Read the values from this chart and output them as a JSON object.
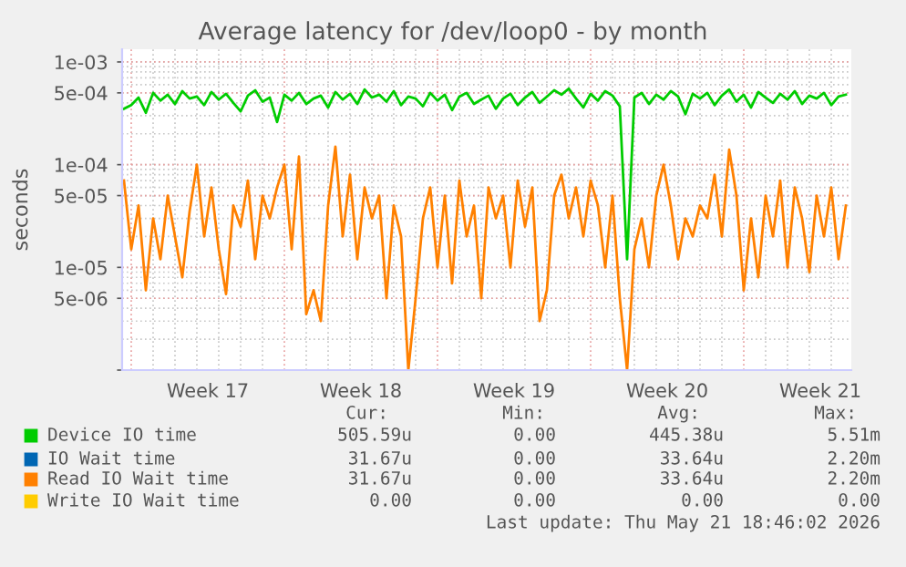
{
  "chart_data": {
    "type": "line",
    "title": "Average latency for /dev/loop0 - by month",
    "ylabel": "seconds",
    "log": true,
    "grid": true,
    "legend": "bottom",
    "xlim": [
      "2026-04-19T14:00",
      "2026-05-22T22:00"
    ],
    "ylim": [
      1e-06,
      0.00133
    ],
    "xticks": [
      {
        "value": "2026-04-23T12:00",
        "label": "Week 17"
      },
      {
        "value": "2026-04-30T12:00",
        "label": "Week 18"
      },
      {
        "value": "2026-05-07T12:00",
        "label": "Week 19"
      },
      {
        "value": "2026-05-14T12:00",
        "label": "Week 20"
      },
      {
        "value": "2026-05-21T12:00",
        "label": "Week 21"
      }
    ],
    "yticks": [
      {
        "value": 0.001,
        "label": "1e-03"
      },
      {
        "value": 0.0005,
        "label": "5e-04"
      },
      {
        "value": 0.0001,
        "label": "1e-04"
      },
      {
        "value": 5e-05,
        "label": "5e-05"
      },
      {
        "value": 1e-05,
        "label": "1e-05"
      },
      {
        "value": 5e-06,
        "label": "5e-06"
      },
      {
        "value": 1e-06,
        "label": null
      }
    ],
    "x": [
      "2026-04-19T16:00",
      "2026-04-20T00:00",
      "2026-04-20T08:00",
      "2026-04-20T16:00",
      "2026-04-21T00:00",
      "2026-04-21T08:00",
      "2026-04-21T16:00",
      "2026-04-22T00:00",
      "2026-04-22T08:00",
      "2026-04-22T16:00",
      "2026-04-23T00:00",
      "2026-04-23T08:00",
      "2026-04-23T16:00",
      "2026-04-24T00:00",
      "2026-04-24T08:00",
      "2026-04-24T16:00",
      "2026-04-25T00:00",
      "2026-04-25T08:00",
      "2026-04-25T16:00",
      "2026-04-26T00:00",
      "2026-04-26T08:00",
      "2026-04-26T16:00",
      "2026-04-27T00:00",
      "2026-04-27T08:00",
      "2026-04-27T16:00",
      "2026-04-28T00:00",
      "2026-04-28T08:00",
      "2026-04-28T16:00",
      "2026-04-29T00:00",
      "2026-04-29T08:00",
      "2026-04-29T16:00",
      "2026-04-30T00:00",
      "2026-04-30T08:00",
      "2026-04-30T16:00",
      "2026-05-01T00:00",
      "2026-05-01T08:00",
      "2026-05-01T16:00",
      "2026-05-02T00:00",
      "2026-05-02T08:00",
      "2026-05-02T16:00",
      "2026-05-03T00:00",
      "2026-05-03T08:00",
      "2026-05-03T16:00",
      "2026-05-04T00:00",
      "2026-05-04T08:00",
      "2026-05-04T16:00",
      "2026-05-05T00:00",
      "2026-05-05T08:00",
      "2026-05-05T16:00",
      "2026-05-06T00:00",
      "2026-05-06T08:00",
      "2026-05-06T16:00",
      "2026-05-07T00:00",
      "2026-05-07T08:00",
      "2026-05-07T16:00",
      "2026-05-08T00:00",
      "2026-05-08T08:00",
      "2026-05-08T16:00",
      "2026-05-09T00:00",
      "2026-05-09T08:00",
      "2026-05-09T16:00",
      "2026-05-10T00:00",
      "2026-05-10T08:00",
      "2026-05-10T16:00",
      "2026-05-11T00:00",
      "2026-05-11T08:00",
      "2026-05-11T16:00",
      "2026-05-12T00:00",
      "2026-05-12T08:00",
      "2026-05-12T16:00",
      "2026-05-13T00:00",
      "2026-05-13T08:00",
      "2026-05-13T16:00",
      "2026-05-14T00:00",
      "2026-05-14T08:00",
      "2026-05-14T16:00",
      "2026-05-15T00:00",
      "2026-05-15T08:00",
      "2026-05-15T16:00",
      "2026-05-16T00:00",
      "2026-05-16T08:00",
      "2026-05-16T16:00",
      "2026-05-17T00:00",
      "2026-05-17T08:00",
      "2026-05-17T16:00",
      "2026-05-18T00:00",
      "2026-05-18T08:00",
      "2026-05-18T16:00",
      "2026-05-19T00:00",
      "2026-05-19T08:00",
      "2026-05-19T16:00",
      "2026-05-20T00:00",
      "2026-05-20T08:00",
      "2026-05-20T16:00",
      "2026-05-21T00:00",
      "2026-05-21T08:00",
      "2026-05-21T16:00",
      "2026-05-22T00:00",
      "2026-05-22T08:00",
      "2026-05-22T16:00"
    ],
    "series": [
      {
        "name": "Device IO time",
        "color": "#00cc00",
        "values": [
          0.00035,
          0.00038,
          0.00045,
          0.00032,
          0.0005,
          0.00042,
          0.00048,
          0.00039,
          0.00052,
          0.00044,
          0.00046,
          0.00038,
          0.00051,
          0.00043,
          0.00049,
          0.0004,
          0.00033,
          0.00047,
          0.00053,
          0.00041,
          0.00045,
          0.00026,
          0.00048,
          0.00042,
          0.0005,
          0.00039,
          0.00044,
          0.00047,
          0.00036,
          0.00051,
          0.00043,
          0.00049,
          0.00039,
          0.00054,
          0.00045,
          0.00048,
          0.00041,
          0.00052,
          0.00038,
          0.00046,
          0.00044,
          0.00037,
          0.0005,
          0.00042,
          0.00048,
          0.00034,
          0.00046,
          0.0005,
          0.00039,
          0.00043,
          0.00047,
          0.00035,
          0.00044,
          0.00049,
          0.00038,
          0.00045,
          0.00051,
          0.0004,
          0.00046,
          0.00053,
          0.00048,
          0.00055,
          0.00044,
          0.00036,
          0.00049,
          0.00042,
          0.00052,
          0.00047,
          0.00037,
          1.2e-05,
          0.00045,
          0.0005,
          0.00039,
          0.00048,
          0.00043,
          0.00052,
          0.00046,
          0.00031,
          0.00049,
          0.00044,
          0.0005,
          0.00038,
          0.00047,
          0.00054,
          0.00041,
          0.00048,
          0.00036,
          0.00051,
          0.00045,
          0.0004,
          0.00049,
          0.00043,
          0.00052,
          0.00039,
          0.00047,
          0.00044,
          0.0005,
          0.00038,
          0.00046,
          0.00048
        ]
      },
      {
        "name": "IO Wait time",
        "color": "#0066b3",
        "values": [
          null,
          null,
          null,
          null,
          null,
          null,
          null,
          null,
          null,
          null,
          null,
          null,
          null,
          null,
          null,
          null,
          null,
          null,
          null,
          null,
          null,
          null,
          null,
          null,
          null,
          null,
          null,
          null,
          null,
          null,
          null,
          null,
          null,
          null,
          null,
          null,
          null,
          null,
          null,
          null,
          null,
          null,
          null,
          null,
          null,
          null,
          null,
          null,
          null,
          null,
          null,
          null,
          null,
          null,
          null,
          null,
          null,
          null,
          null,
          null,
          null,
          null,
          null,
          null,
          null,
          null,
          null,
          null,
          null,
          null,
          null,
          null,
          null,
          null,
          null,
          null,
          null,
          null,
          null,
          null,
          null,
          null,
          null,
          null,
          null,
          null,
          null,
          null,
          null,
          null,
          null,
          null,
          null,
          null,
          null,
          null,
          null,
          null,
          null,
          null
        ]
      },
      {
        "name": "Read IO Wait time",
        "color": "#ff8000",
        "values": [
          7e-05,
          1.5e-05,
          4e-05,
          6e-06,
          3e-05,
          1.2e-05,
          5e-05,
          2e-05,
          8e-06,
          3.5e-05,
          0.0001,
          2e-05,
          6e-05,
          1.5e-05,
          5.5e-06,
          4e-05,
          2.5e-05,
          7e-05,
          1.2e-05,
          5e-05,
          3e-05,
          6e-05,
          0.0001,
          1.5e-05,
          0.00012,
          3.5e-06,
          6e-06,
          3e-06,
          4e-05,
          0.00015,
          2e-05,
          8e-05,
          1.2e-05,
          6e-05,
          3e-05,
          5e-05,
          5e-06,
          4e-05,
          2e-05,
          1e-06,
          5e-06,
          3e-05,
          6e-05,
          1e-05,
          5e-05,
          7e-06,
          7e-05,
          2e-05,
          4e-05,
          5e-06,
          6e-05,
          3e-05,
          5e-05,
          1e-05,
          7e-05,
          2.5e-05,
          6e-05,
          3e-06,
          6e-06,
          5e-05,
          8e-05,
          3e-05,
          6e-05,
          2e-05,
          7e-05,
          4e-05,
          1e-05,
          5e-05,
          5e-06,
          1e-06,
          1.5e-05,
          3e-05,
          1e-05,
          5e-05,
          0.0001,
          4e-05,
          1.2e-05,
          3e-05,
          2e-05,
          4e-05,
          3e-05,
          8e-05,
          2e-05,
          0.00014,
          5e-05,
          6e-06,
          3e-05,
          8e-06,
          5e-05,
          2e-05,
          7e-05,
          1e-05,
          6e-05,
          3e-05,
          9e-06,
          5e-05,
          2e-05,
          6e-05,
          1.2e-05,
          4e-05
        ]
      },
      {
        "name": "Write IO Wait time",
        "color": "#ffcc00",
        "values": [
          null,
          null,
          null,
          null,
          null,
          null,
          null,
          null,
          null,
          null,
          null,
          null,
          null,
          null,
          null,
          null,
          null,
          null,
          null,
          null,
          null,
          null,
          null,
          null,
          null,
          null,
          null,
          null,
          null,
          null,
          null,
          null,
          null,
          null,
          null,
          null,
          null,
          null,
          null,
          null,
          null,
          null,
          null,
          null,
          null,
          null,
          null,
          null,
          null,
          null,
          null,
          null,
          null,
          null,
          null,
          null,
          null,
          null,
          null,
          null,
          null,
          null,
          null,
          null,
          null,
          null,
          null,
          null,
          null,
          null,
          null,
          null,
          null,
          null,
          null,
          null,
          null,
          null,
          null,
          null,
          null,
          null,
          null,
          null,
          null,
          null,
          null,
          null,
          null,
          null,
          null,
          null,
          null,
          null,
          null,
          null,
          null,
          null,
          null,
          null
        ]
      }
    ],
    "annotations": [
      "Cur:",
      "Min:",
      "Avg:",
      "Max:",
      "505.59u",
      "0.00",
      "445.38u",
      "5.51m",
      "31.67u",
      "0.00",
      "33.64u",
      "2.20m",
      "31.67u",
      "0.00",
      "33.64u",
      "2.20m",
      "0.00",
      "0.00",
      "0.00",
      "0.00",
      "Last update: Thu May 21 18:46:02 2026"
    ]
  }
}
